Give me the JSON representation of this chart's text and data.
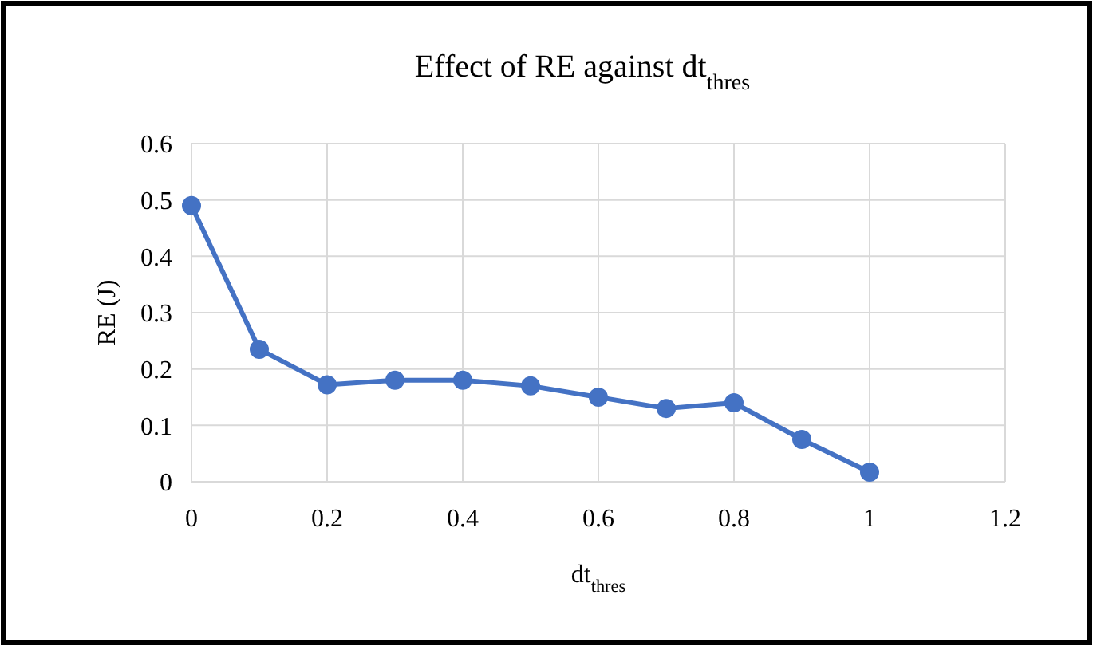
{
  "chart_data": {
    "type": "line",
    "title": "Effect of RE against dt$_{thres}$",
    "xlabel": "dt$_{thres}$",
    "ylabel": "RE (J)",
    "x": [
      0,
      0.1,
      0.2,
      0.3,
      0.4,
      0.5,
      0.6,
      0.7,
      0.8,
      0.9,
      1
    ],
    "series": [
      {
        "color": "#4472c4",
        "values": [
          0.49,
          0.235,
          0.172,
          0.18,
          0.18,
          0.17,
          0.15,
          0.13,
          0.14,
          0.075,
          0.017
        ]
      }
    ],
    "xlim": [
      0,
      1.2
    ],
    "xticks": [
      0,
      0.2,
      0.4,
      0.6,
      0.8,
      1,
      1.2
    ],
    "ylim": [
      0,
      0.6
    ],
    "yticks": [
      0,
      0.1,
      0.2,
      0.3,
      0.4,
      0.5,
      0.6
    ],
    "grid": true,
    "marker": "circle",
    "line_style": "solid"
  }
}
